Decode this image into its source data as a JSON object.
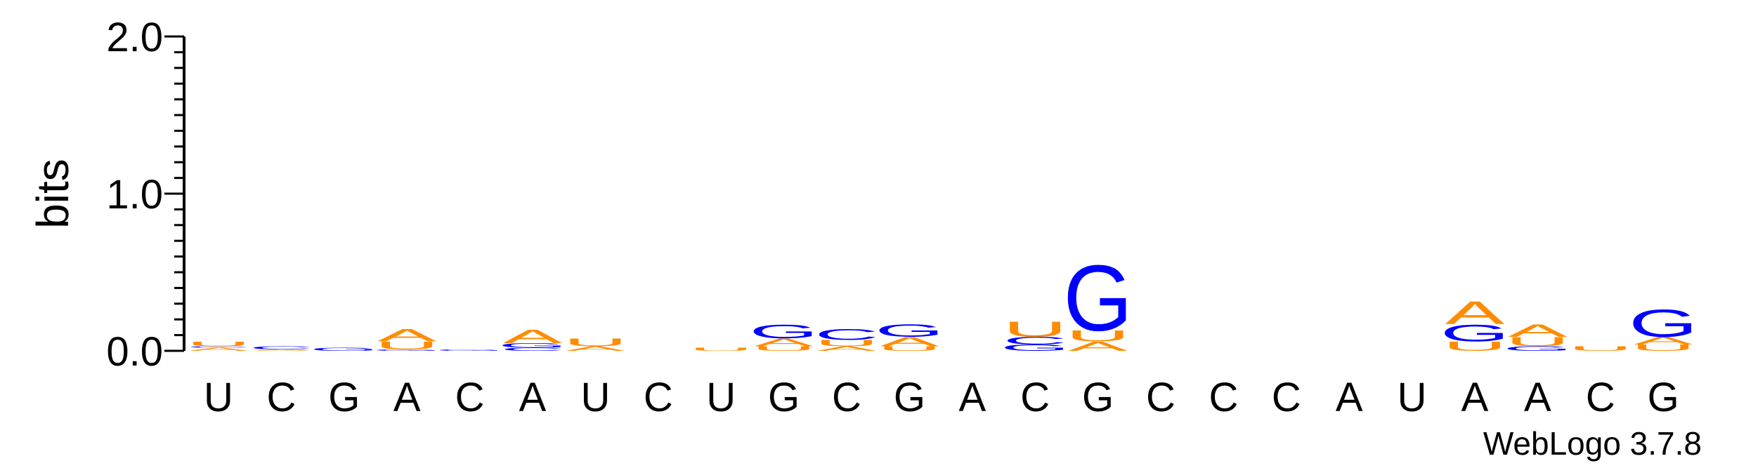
{
  "chart_data": {
    "type": "sequence-logo",
    "ylabel": "bits",
    "ylim": [
      0,
      2.0
    ],
    "yticks": [
      {
        "value": 0.0,
        "label": "0.0"
      },
      {
        "value": 1.0,
        "label": "1.0"
      },
      {
        "value": 2.0,
        "label": "2.0"
      }
    ],
    "x": [
      "U",
      "C",
      "G",
      "A",
      "C",
      "A",
      "U",
      "C",
      "U",
      "G",
      "C",
      "G",
      "A",
      "C",
      "G",
      "C",
      "C",
      "C",
      "A",
      "U",
      "A",
      "A",
      "C",
      "G"
    ],
    "colors": {
      "A": "#FF8C00",
      "U": "#FF8C00",
      "G": "#0000FF",
      "C": "#0000FF"
    },
    "stacks": [
      [
        {
          "letter": "A",
          "bits": 0.02
        },
        {
          "letter": "C",
          "bits": 0.01
        },
        {
          "letter": "U",
          "bits": 0.03
        }
      ],
      [
        {
          "letter": "A",
          "bits": 0.01
        },
        {
          "letter": "C",
          "bits": 0.02
        }
      ],
      [
        {
          "letter": "G",
          "bits": 0.02
        }
      ],
      [
        {
          "letter": "G",
          "bits": 0.01
        },
        {
          "letter": "U",
          "bits": 0.05
        },
        {
          "letter": "A",
          "bits": 0.08
        }
      ],
      [
        {
          "letter": "G",
          "bits": 0.01
        }
      ],
      [
        {
          "letter": "C",
          "bits": 0.02
        },
        {
          "letter": "G",
          "bits": 0.03
        },
        {
          "letter": "A",
          "bits": 0.09
        }
      ],
      [
        {
          "letter": "A",
          "bits": 0.03
        },
        {
          "letter": "U",
          "bits": 0.05
        }
      ],
      [],
      [
        {
          "letter": "U",
          "bits": 0.02
        }
      ],
      [
        {
          "letter": "U",
          "bits": 0.03
        },
        {
          "letter": "A",
          "bits": 0.05
        },
        {
          "letter": "G",
          "bits": 0.09
        }
      ],
      [
        {
          "letter": "A",
          "bits": 0.03
        },
        {
          "letter": "U",
          "bits": 0.04
        },
        {
          "letter": "C",
          "bits": 0.07
        }
      ],
      [
        {
          "letter": "U",
          "bits": 0.03
        },
        {
          "letter": "A",
          "bits": 0.06
        },
        {
          "letter": "G",
          "bits": 0.08
        }
      ],
      [],
      [
        {
          "letter": "G",
          "bits": 0.04
        },
        {
          "letter": "C",
          "bits": 0.05
        },
        {
          "letter": "U",
          "bits": 0.1
        }
      ],
      [
        {
          "letter": "A",
          "bits": 0.06
        },
        {
          "letter": "U",
          "bits": 0.07
        },
        {
          "letter": "G",
          "bits": 0.43
        }
      ],
      [],
      [],
      [],
      [],
      [],
      [
        {
          "letter": "U",
          "bits": 0.06
        },
        {
          "letter": "G",
          "bits": 0.11
        },
        {
          "letter": "A",
          "bits": 0.15
        }
      ],
      [
        {
          "letter": "G",
          "bits": 0.03
        },
        {
          "letter": "U",
          "bits": 0.06
        },
        {
          "letter": "A",
          "bits": 0.08
        }
      ],
      [
        {
          "letter": "U",
          "bits": 0.03
        }
      ],
      [
        {
          "letter": "U",
          "bits": 0.04
        },
        {
          "letter": "A",
          "bits": 0.05
        },
        {
          "letter": "G",
          "bits": 0.18
        }
      ]
    ]
  },
  "credit": "WebLogo 3.7.8"
}
